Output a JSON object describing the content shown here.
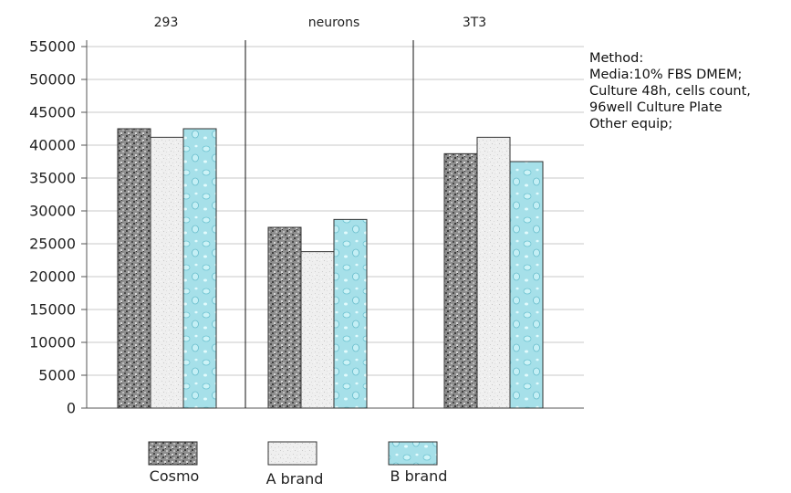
{
  "chart_data": {
    "type": "bar",
    "categories": [
      "293",
      "neurons",
      "3T3"
    ],
    "series": [
      {
        "name": "Cosmo",
        "values": [
          42500,
          27500,
          38700
        ],
        "pattern": "speckle-dark"
      },
      {
        "name": "A brand",
        "values": [
          41200,
          23800,
          41200
        ],
        "pattern": "speckle-light"
      },
      {
        "name": "B brand",
        "values": [
          42500,
          28700,
          37500
        ],
        "pattern": "water-cyan"
      }
    ],
    "y_ticks": [
      "0",
      "5000",
      "10000",
      "15000",
      "20000",
      "25000",
      "30000",
      "35000",
      "40000",
      "45000",
      "50000",
      "55000"
    ],
    "ylim": [
      0,
      55000
    ],
    "grid": true,
    "legend_position": "bottom",
    "colors": {
      "cosmo": "#8a8a8a",
      "a_brand": "#ececec",
      "b_brand": "#a9e2ea",
      "grid": "#c8c8c8",
      "axis": "#555555"
    }
  },
  "method_note": {
    "lines": [
      "Method:",
      "Media:10% FBS DMEM;",
      "Culture 48h, cells count,",
      "96well Culture Plate",
      "Other equip;"
    ]
  }
}
